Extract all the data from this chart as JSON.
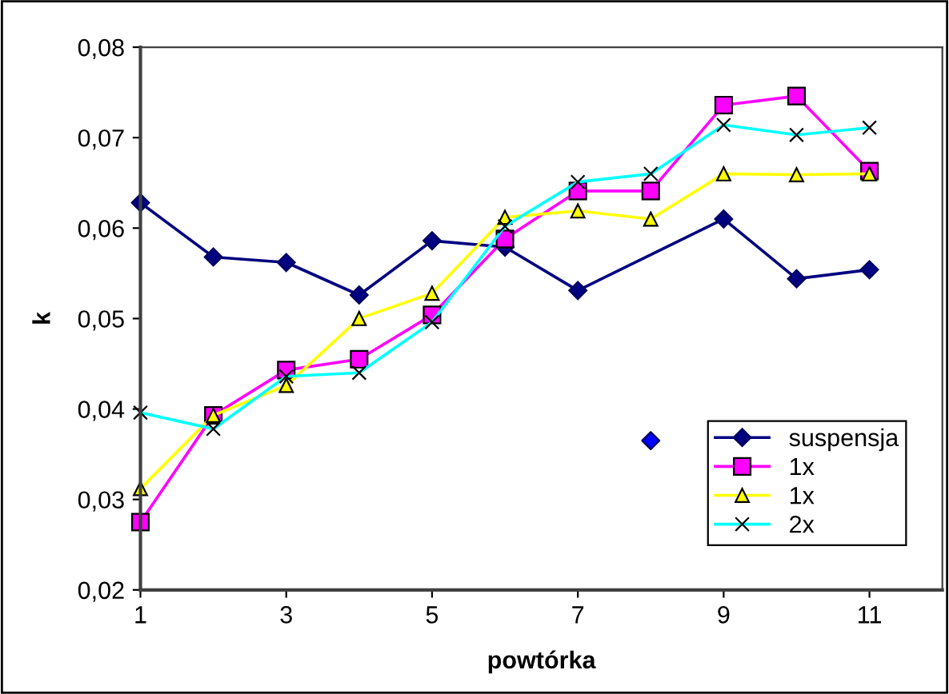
{
  "chart_data": {
    "type": "line",
    "xlabel": "powtórka",
    "ylabel": "k",
    "xlim": [
      1,
      12
    ],
    "xticks": [
      1,
      3,
      5,
      7,
      9,
      11
    ],
    "ylim": [
      0.02,
      0.08
    ],
    "yticks": [
      {
        "value": 0.02,
        "label": "0,02"
      },
      {
        "value": 0.03,
        "label": "0,03"
      },
      {
        "value": 0.04,
        "label": "0,04"
      },
      {
        "value": 0.05,
        "label": "0,05"
      },
      {
        "value": 0.06,
        "label": "0,06"
      },
      {
        "value": 0.07,
        "label": "0,07"
      },
      {
        "value": 0.08,
        "label": "0,08"
      }
    ],
    "grid": false,
    "legend": "bottom right",
    "series": [
      {
        "name": "suspensja",
        "color": "#000080",
        "marker": "diamond",
        "x": [
          1,
          2,
          3,
          4,
          5,
          6,
          7,
          9,
          10,
          11
        ],
        "values": [
          0.0628,
          0.0568,
          0.0562,
          0.0526,
          0.0586,
          0.0579,
          0.0531,
          0.061,
          0.0544,
          0.0554
        ]
      },
      {
        "name": "1x",
        "color": "#ff00ff",
        "marker": "square",
        "x": [
          1,
          2,
          3,
          4,
          5,
          6,
          7,
          8,
          9,
          10,
          11
        ],
        "values": [
          0.0275,
          0.0393,
          0.0443,
          0.0455,
          0.0504,
          0.0588,
          0.0641,
          0.0641,
          0.0736,
          0.0746,
          0.0663
        ]
      },
      {
        "name": "1x",
        "color": "#ffff00",
        "marker": "triangle",
        "x": [
          1,
          2,
          3,
          4,
          5,
          6,
          7,
          8,
          9,
          10,
          11
        ],
        "values": [
          0.0312,
          0.0393,
          0.0426,
          0.05,
          0.0528,
          0.0612,
          0.0619,
          0.061,
          0.066,
          0.0659,
          0.066
        ]
      },
      {
        "name": "2x",
        "color": "#00ffff",
        "marker": "cross",
        "x": [
          1,
          2,
          3,
          4,
          5,
          6,
          7,
          8,
          9,
          10,
          11
        ],
        "values": [
          0.0396,
          0.0378,
          0.0436,
          0.044,
          0.0496,
          0.0602,
          0.0651,
          0.066,
          0.0714,
          0.0703,
          0.0711
        ]
      },
      {
        "type": "scatter",
        "color": "#0000ff",
        "marker": "diamond",
        "x": [
          8
        ],
        "values": [
          0.0365
        ]
      }
    ]
  }
}
